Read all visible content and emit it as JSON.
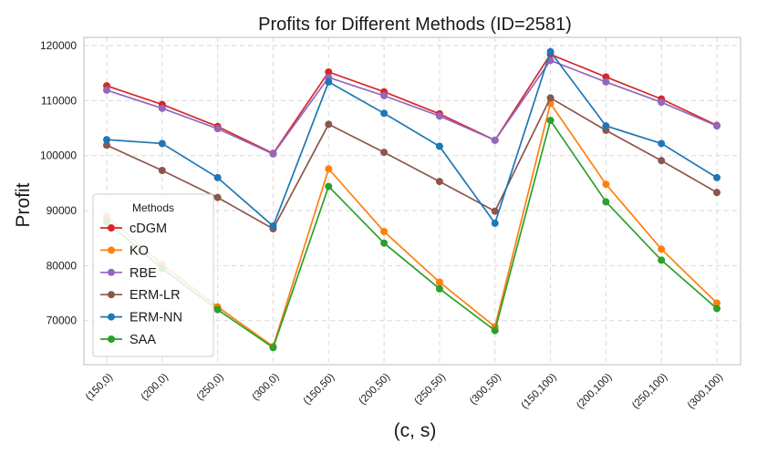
{
  "chart_data": {
    "type": "line",
    "title": "Profits for Different Methods (ID=2581)",
    "xlabel": "(c, s)",
    "ylabel": "Profit",
    "categories": [
      "(150,0)",
      "(200,0)",
      "(250,0)",
      "(300,0)",
      "(150,50)",
      "(200,50)",
      "(250,50)",
      "(300,50)",
      "(150,100)",
      "(200,100)",
      "(250,100)",
      "(300,100)"
    ],
    "ylim": [
      62000,
      121500
    ],
    "yticks": [
      70000,
      80000,
      90000,
      100000,
      110000,
      120000
    ],
    "grid": true,
    "legend": {
      "title": "Methods",
      "placement": "center-left"
    },
    "series": [
      {
        "name": "cDGM",
        "color": "#d62728",
        "values": [
          112700,
          109300,
          105300,
          100400,
          115200,
          111600,
          107600,
          102800,
          118400,
          114300,
          110300,
          105500
        ]
      },
      {
        "name": "KO",
        "color": "#ff7f0e",
        "values": [
          89000,
          80200,
          72500,
          65300,
          97600,
          86200,
          77000,
          68900,
          109500,
          94800,
          83000,
          73200
        ]
      },
      {
        "name": "RBE",
        "color": "#9467bd",
        "values": [
          111900,
          108600,
          104900,
          100300,
          114200,
          110900,
          107200,
          102800,
          117300,
          113400,
          109700,
          105400
        ]
      },
      {
        "name": "ERM-LR",
        "color": "#8c564b",
        "values": [
          101900,
          97300,
          92400,
          86700,
          105700,
          100600,
          95300,
          89900,
          110500,
          104600,
          99100,
          93300
        ]
      },
      {
        "name": "ERM-NN",
        "color": "#1f77b4",
        "values": [
          102900,
          102200,
          96000,
          87200,
          113400,
          107700,
          101700,
          87700,
          118900,
          105400,
          102200,
          96000
        ]
      },
      {
        "name": "SAA",
        "color": "#2ca02c",
        "values": [
          88000,
          79500,
          72000,
          65100,
          94400,
          84100,
          75800,
          68200,
          106400,
          91600,
          81000,
          72200
        ]
      }
    ]
  }
}
